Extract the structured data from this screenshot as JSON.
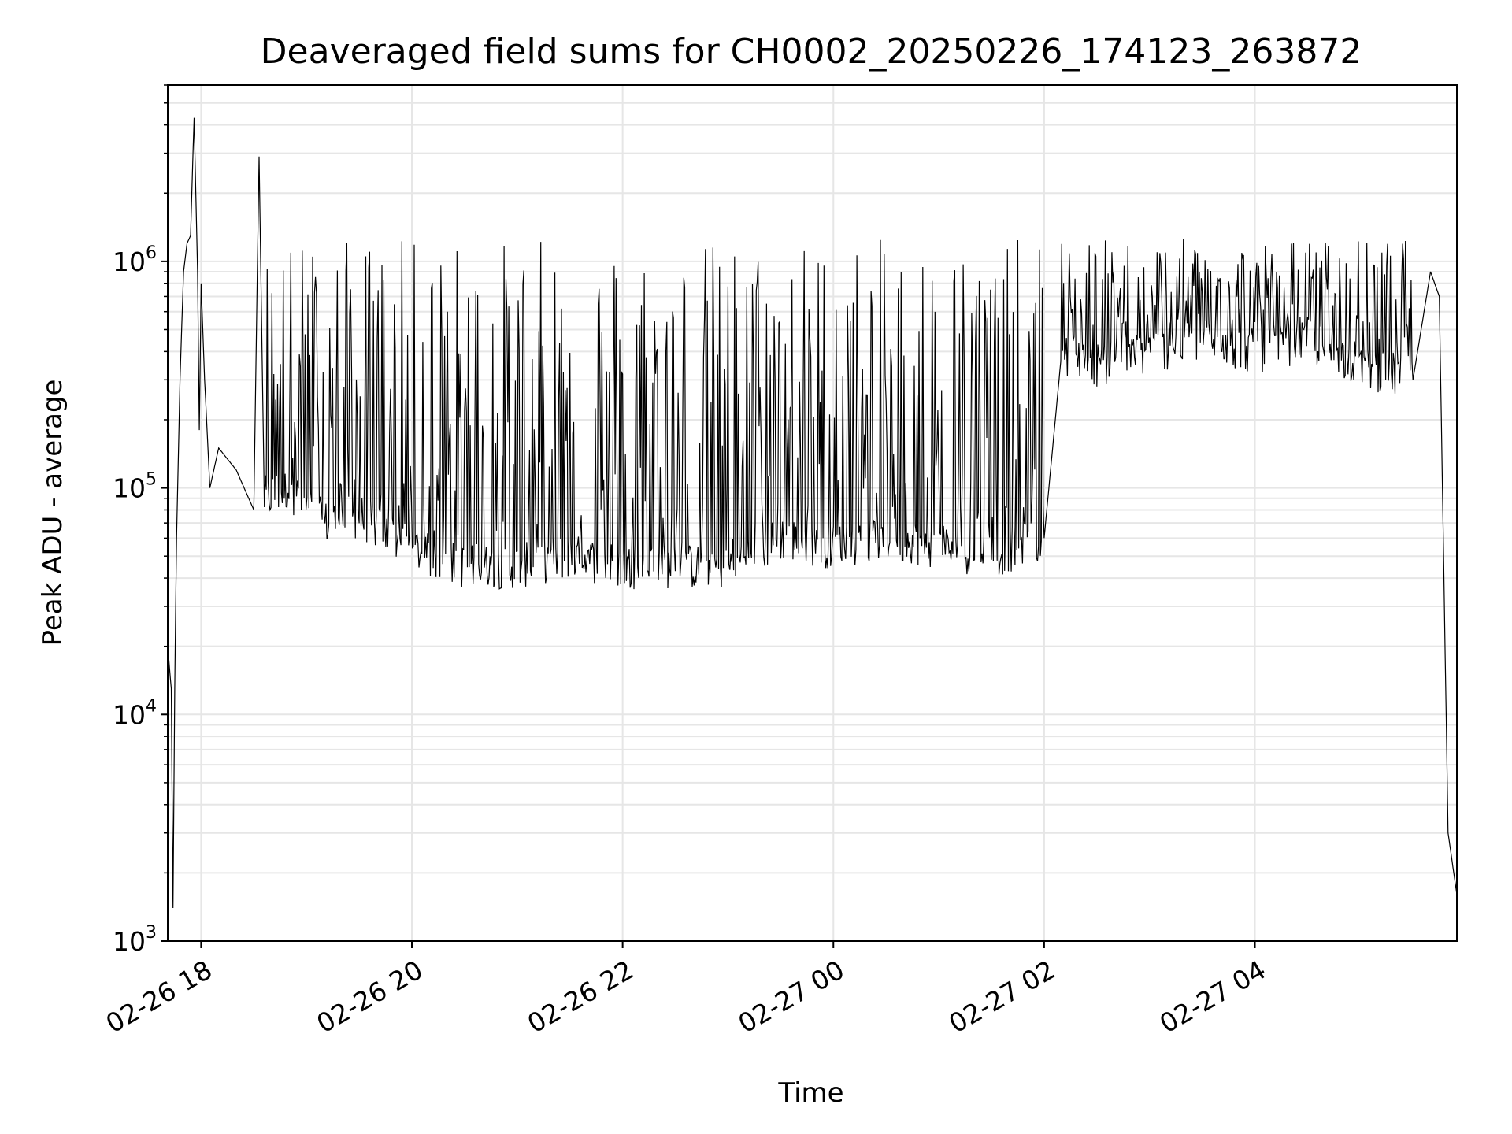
{
  "chart_data": {
    "type": "line",
    "title": "Deaveraged field sums for CH0002_20250226_174123_263872",
    "xlabel": "Time",
    "ylabel": "Peak ADU - average",
    "yscale": "log",
    "ylim": [
      1000,
      6000000
    ],
    "xlim": [
      "2025-02-26T17:41",
      "2025-02-27T05:55"
    ],
    "grid": true,
    "line_color": "#000000",
    "x_ticks": [
      {
        "label": "02-26 18",
        "value": "2025-02-26T18:00"
      },
      {
        "label": "02-26 20",
        "value": "2025-02-26T20:00"
      },
      {
        "label": "02-26 22",
        "value": "2025-02-26T22:00"
      },
      {
        "label": "02-27 00",
        "value": "2025-02-27T00:00"
      },
      {
        "label": "02-27 02",
        "value": "2025-02-27T02:00"
      },
      {
        "label": "02-27 04",
        "value": "2025-02-27T04:00"
      }
    ],
    "y_ticks": [
      {
        "base": "10",
        "exp": "3",
        "value": 1000
      },
      {
        "base": "10",
        "exp": "4",
        "value": 10000
      },
      {
        "base": "10",
        "exp": "5",
        "value": 100000
      },
      {
        "base": "10",
        "exp": "6",
        "value": 1000000
      }
    ],
    "series": [
      {
        "x": [
          "2025-02-26T17:41",
          "2025-02-26T17:43",
          "2025-02-26T17:44",
          "2025-02-26T17:45",
          "2025-02-26T17:46",
          "2025-02-26T17:48",
          "2025-02-26T17:50",
          "2025-02-26T17:52",
          "2025-02-26T17:54",
          "2025-02-26T17:56",
          "2025-02-26T17:58",
          "2025-02-26T17:59",
          "2025-02-26T18:00",
          "2025-02-26T18:02",
          "2025-02-26T18:05",
          "2025-02-26T18:10",
          "2025-02-26T18:20",
          "2025-02-26T18:30",
          "2025-02-26T18:33",
          "2025-02-26T18:36",
          "2025-02-26T18:50",
          "2025-02-26T19:10",
          "2025-02-26T19:30",
          "2025-02-26T19:50",
          "2025-02-26T20:10",
          "2025-02-26T20:30",
          "2025-02-26T21:00",
          "2025-02-26T21:30",
          "2025-02-26T22:00",
          "2025-02-26T22:30",
          "2025-02-26T23:00",
          "2025-02-26T23:30",
          "2025-02-27T00:00",
          "2025-02-27T00:30",
          "2025-02-27T01:00",
          "2025-02-27T01:30",
          "2025-02-27T02:00",
          "2025-02-27T02:10",
          "2025-02-27T02:30",
          "2025-02-27T03:00",
          "2025-02-27T03:30",
          "2025-02-27T04:00",
          "2025-02-27T04:30",
          "2025-02-27T05:00",
          "2025-02-27T05:30",
          "2025-02-27T05:40",
          "2025-02-27T05:45",
          "2025-02-27T05:50",
          "2025-02-27T05:55"
        ],
        "y": [
          20000,
          13000,
          1400,
          13000,
          60000,
          300000,
          900000,
          1200000,
          1300000,
          4300000,
          900000,
          180000,
          800000,
          300000,
          100000,
          150000,
          120000,
          80000,
          2900000,
          90000,
          100000,
          70000,
          75000,
          60000,
          50000,
          45000,
          45000,
          50000,
          45000,
          45000,
          45000,
          60000,
          55000,
          60000,
          55000,
          50000,
          60000,
          400000,
          350000,
          400000,
          450000,
          400000,
          450000,
          350000,
          300000,
          900000,
          700000,
          3000,
          1600
        ]
      }
    ]
  }
}
